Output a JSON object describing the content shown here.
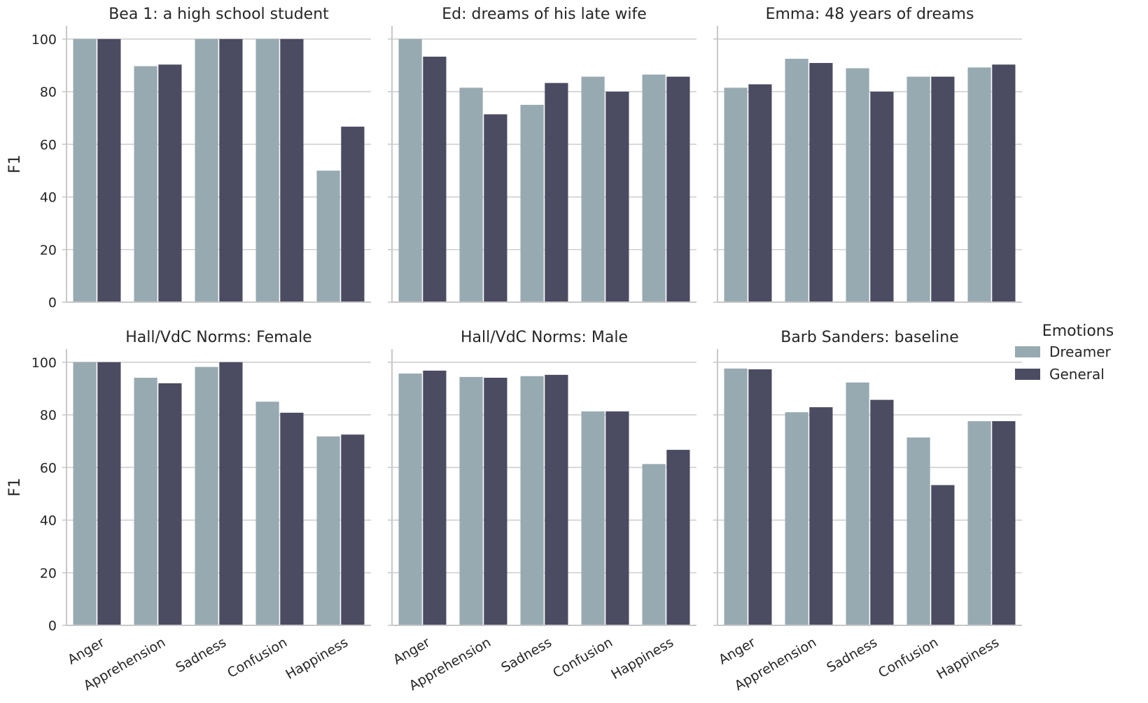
{
  "chart_data": {
    "type": "bar",
    "layout": "facet-grid-2x3",
    "ylabel": "F1",
    "ylim": [
      0,
      105
    ],
    "yticks": [
      0,
      20,
      40,
      60,
      80,
      100
    ],
    "grid": true,
    "categories": [
      "Anger",
      "Apprehension",
      "Sadness",
      "Confusion",
      "Happiness"
    ],
    "legend": {
      "title": "Emotions",
      "placement": "right",
      "entries": [
        "Dreamer",
        "General"
      ]
    },
    "colors": {
      "Dreamer": "#98aab1",
      "General": "#4b4b62",
      "grid": "#cfcfcf",
      "axis": "#c8c8c8"
    },
    "panels": [
      {
        "title": "Bea 1: a high school student",
        "series": [
          {
            "name": "Dreamer",
            "values": [
              100,
              89.7,
              100,
              100,
              50
            ]
          },
          {
            "name": "General",
            "values": [
              100,
              90.3,
              100,
              100,
              66.7
            ]
          }
        ]
      },
      {
        "title": "Ed: dreams of his late wife",
        "series": [
          {
            "name": "Dreamer",
            "values": [
              100,
              81.5,
              75,
              85.7,
              86.5
            ]
          },
          {
            "name": "General",
            "values": [
              93.3,
              71.4,
              83.3,
              80,
              85.7
            ]
          }
        ]
      },
      {
        "title": "Emma: 48 years of dreams",
        "series": [
          {
            "name": "Dreamer",
            "values": [
              81.5,
              92.5,
              88.9,
              85.7,
              89.2
            ]
          },
          {
            "name": "General",
            "values": [
              82.8,
              90.9,
              80,
              85.7,
              90.3
            ]
          }
        ]
      },
      {
        "title": "Hall/VdC Norms: Female",
        "series": [
          {
            "name": "Dreamer",
            "values": [
              100,
              94.1,
              98.2,
              85,
              71.8
            ]
          },
          {
            "name": "General",
            "values": [
              100,
              92,
              100,
              80.8,
              72.5
            ]
          }
        ]
      },
      {
        "title": "Hall/VdC Norms: Male",
        "series": [
          {
            "name": "Dreamer",
            "values": [
              95.7,
              94.4,
              94.7,
              81.3,
              61.3
            ]
          },
          {
            "name": "General",
            "values": [
              96.8,
              94.1,
              95.2,
              81.3,
              66.7
            ]
          }
        ]
      },
      {
        "title": "Barb Sanders: baseline",
        "series": [
          {
            "name": "Dreamer",
            "values": [
              97.6,
              81,
              92.3,
              71.4,
              77.6
            ]
          },
          {
            "name": "General",
            "values": [
              97.3,
              82.9,
              85.7,
              53.3,
              77.6
            ]
          }
        ]
      }
    ]
  }
}
